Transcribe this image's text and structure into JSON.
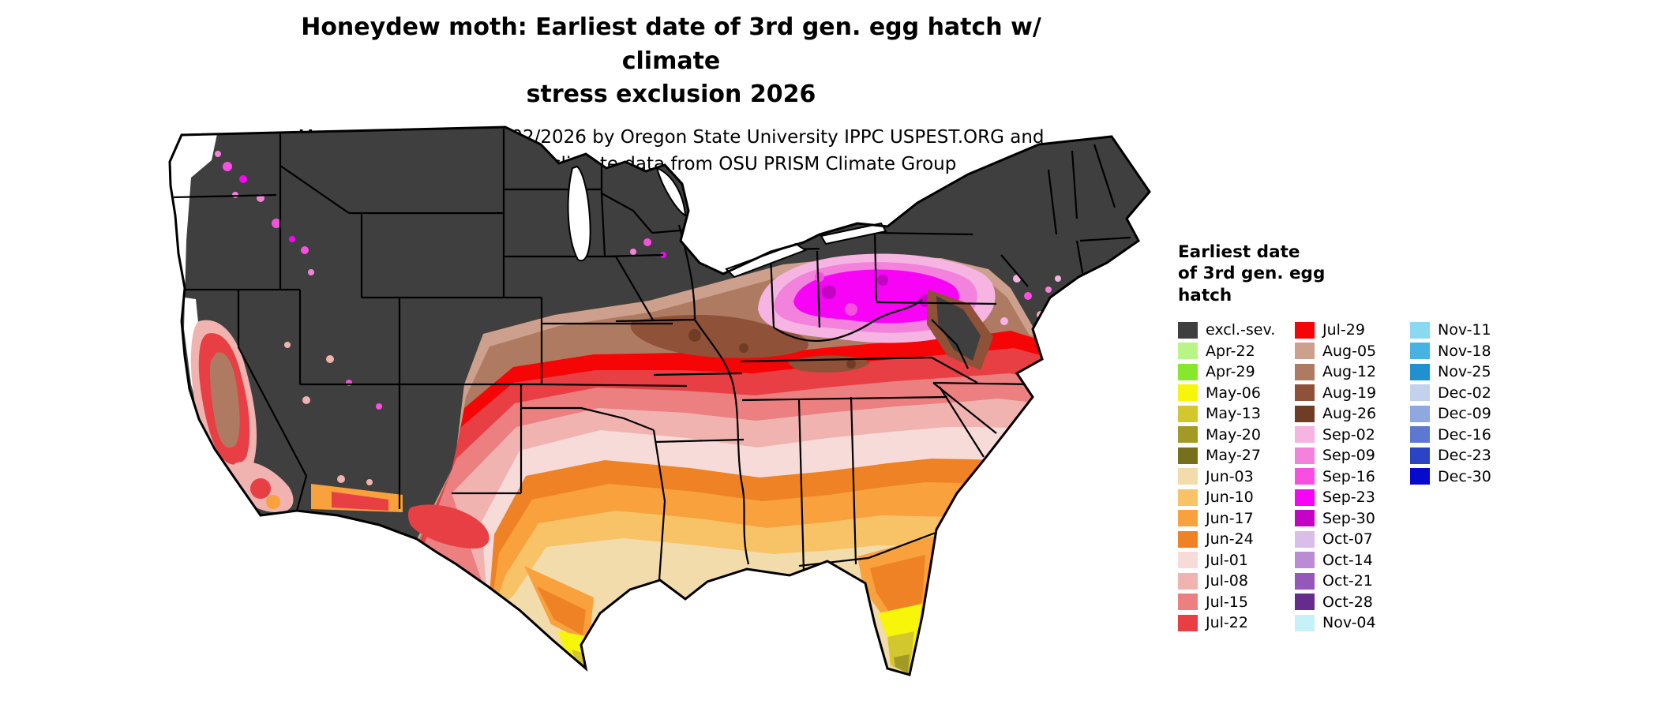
{
  "title": {
    "line1": "Honeydew moth: Earliest date of 3rd gen. egg hatch w/ climate",
    "line2": "stress exclusion 2026"
  },
  "subtitle": {
    "line1": "Maps and modeling 01/02/2026 by Oregon State University IPPC USPEST.ORG and",
    "line2": "USDA-APHIS-PPQ; climate data from OSU PRISM Climate Group"
  },
  "legend": {
    "title_lines": [
      "Earliest date",
      "of 3rd gen. egg",
      "hatch"
    ],
    "columns": [
      {
        "labels": [
          "excl.-sev.",
          "Apr-22",
          "Apr-29",
          "May-06",
          "May-13",
          "May-20",
          "May-27",
          "Jun-03",
          "Jun-10",
          "Jun-17",
          "Jun-24",
          "Jul-01",
          "Jul-08",
          "Jul-15",
          "Jul-22"
        ]
      },
      {
        "labels": [
          "Jul-29",
          "Aug-05",
          "Aug-12",
          "Aug-19",
          "Aug-26",
          "Sep-02",
          "Sep-09",
          "Sep-16",
          "Sep-23",
          "Sep-30",
          "Oct-07",
          "Oct-14",
          "Oct-21",
          "Oct-28",
          "Nov-04"
        ]
      },
      {
        "labels": [
          "Nov-11",
          "Nov-18",
          "Nov-25",
          "Dec-02",
          "Dec-09",
          "Dec-16",
          "Dec-23",
          "Dec-30"
        ]
      }
    ]
  },
  "palette": {
    "excl.-sev.": "#3F3F3F",
    "Apr-22": "#B9F487",
    "Apr-29": "#86E72C",
    "May-06": "#F6F50A",
    "May-13": "#D3C72E",
    "May-20": "#A39A26",
    "May-27": "#76701C",
    "Jun-03": "#F2DCAB",
    "Jun-10": "#F8C367",
    "Jun-17": "#F8A13D",
    "Jun-24": "#EF8224",
    "Jul-01": "#F6DBD9",
    "Jul-08": "#F1B3B0",
    "Jul-15": "#EC7F80",
    "Jul-22": "#E83F44",
    "Jul-29": "#F50505",
    "Aug-05": "#CDA08D",
    "Aug-12": "#AE7B62",
    "Aug-19": "#8F5138",
    "Aug-26": "#6F3D26",
    "Sep-02": "#F6B4E2",
    "Sep-09": "#F282DB",
    "Sep-16": "#F84FE0",
    "Sep-23": "#F704F7",
    "Sep-30": "#C403C4",
    "Oct-07": "#DABEE9",
    "Oct-14": "#BA8CD5",
    "Oct-21": "#9557B9",
    "Oct-28": "#662C8C",
    "Nov-04": "#C7F1F9",
    "Nov-11": "#8BD9F1",
    "Nov-18": "#46B3E3",
    "Nov-25": "#2090CE",
    "Dec-02": "#C2D2ED",
    "Dec-09": "#90A8E0",
    "Dec-16": "#5C78D0",
    "Dec-23": "#2B44C4",
    "Dec-30": "#050ACB"
  }
}
